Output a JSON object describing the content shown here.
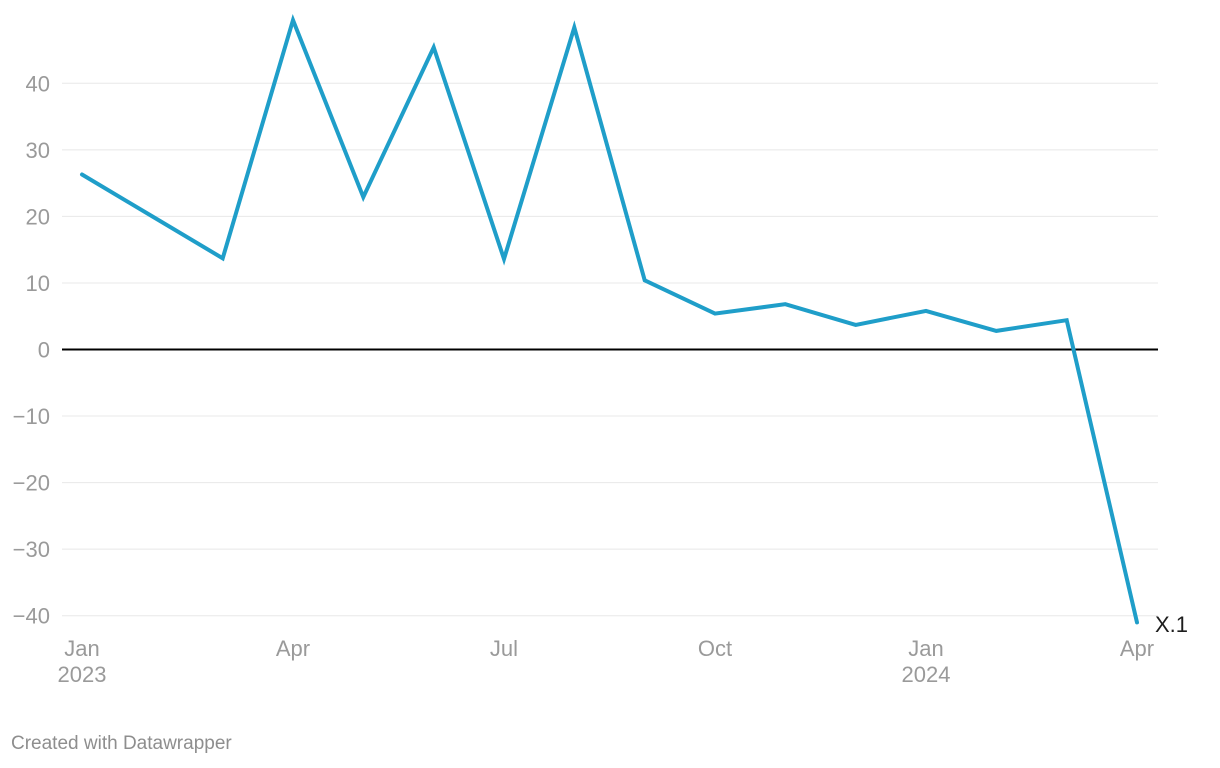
{
  "chart_data": {
    "type": "line",
    "title": "",
    "series_label": "X.1",
    "line_color": "#1f9ec9",
    "line_width": 4,
    "grid_color": "#e8e8e8",
    "zero_line_color": "#000000",
    "tick_label_color": "#9a9a9a",
    "grid": true,
    "legend_position": "end-of-line",
    "x": [
      "Jan 2023",
      "Feb 2023",
      "Mar 2023",
      "Apr 2023",
      "May 2023",
      "Jun 2023",
      "Jul 2023",
      "Aug 2023",
      "Sep 2023",
      "Oct 2023",
      "Nov 2023",
      "Dec 2023",
      "Jan 2024",
      "Feb 2024",
      "Mar 2024",
      "Apr 2024"
    ],
    "values": [
      26.3,
      20.0,
      13.7,
      49.5,
      22.9,
      45.4,
      13.6,
      48.4,
      10.4,
      5.4,
      6.8,
      3.7,
      5.8,
      2.8,
      4.4,
      -41.0
    ],
    "x_tick_labels": [
      {
        "index": 0,
        "month": "Jan",
        "year": "2023"
      },
      {
        "index": 3,
        "month": "Apr",
        "year": ""
      },
      {
        "index": 6,
        "month": "Jul",
        "year": ""
      },
      {
        "index": 9,
        "month": "Oct",
        "year": ""
      },
      {
        "index": 12,
        "month": "Jan",
        "year": "2024"
      },
      {
        "index": 15,
        "month": "Apr",
        "year": ""
      }
    ],
    "y_ticks": [
      {
        "value": 40,
        "label": "40"
      },
      {
        "value": 30,
        "label": "30"
      },
      {
        "value": 20,
        "label": "20"
      },
      {
        "value": 10,
        "label": "10"
      },
      {
        "value": 0,
        "label": "0"
      },
      {
        "value": -10,
        "label": "−10"
      },
      {
        "value": -20,
        "label": "−20"
      },
      {
        "value": -30,
        "label": "−30"
      },
      {
        "value": -40,
        "label": "−40"
      }
    ],
    "ylim": [
      -43,
      50.5
    ],
    "xlabel": "",
    "ylabel": ""
  },
  "footer": {
    "credit": "Created with Datawrapper"
  }
}
